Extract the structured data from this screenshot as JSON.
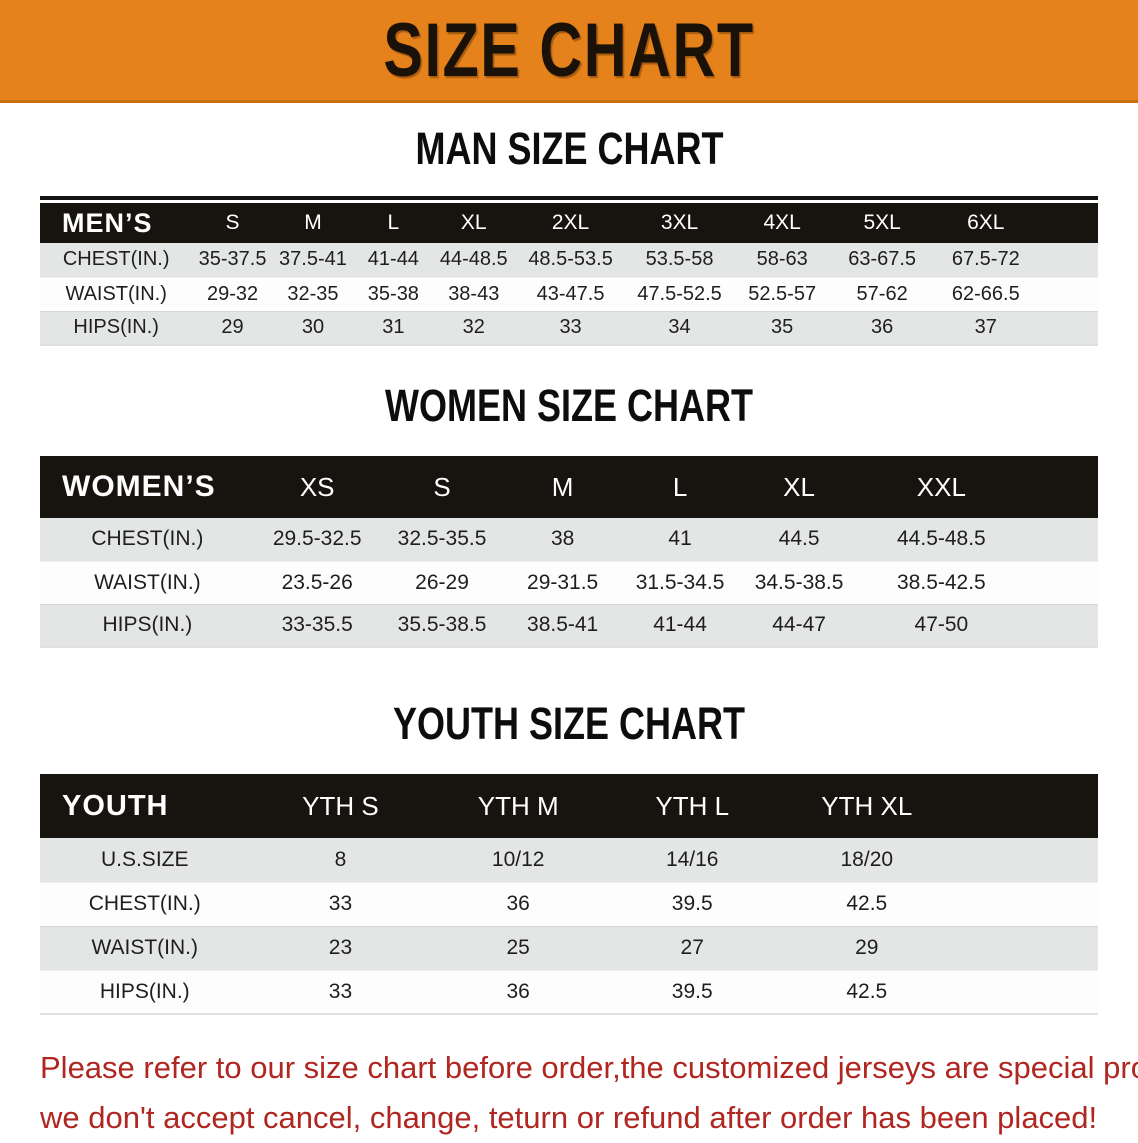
{
  "banner": {
    "title": "SIZE CHART",
    "bg_color": "#E5821B"
  },
  "chart_data": [
    {
      "type": "table",
      "title": "MAN SIZE CHART",
      "header_label": "MEN’S",
      "columns": [
        "S",
        "M",
        "L",
        "XL",
        "2XL",
        "3XL",
        "4XL",
        "5XL",
        "6XL"
      ],
      "rows": [
        {
          "label": "CHEST(IN.)",
          "values": [
            "35-37.5",
            "37.5-41",
            "41-44",
            "44-48.5",
            "48.5-53.5",
            "53.5-58",
            "58-63",
            "63-67.5",
            "67.5-72"
          ]
        },
        {
          "label": "WAIST(IN.)",
          "values": [
            "29-32",
            "32-35",
            "35-38",
            "38-43",
            "43-47.5",
            "47.5-52.5",
            "52.5-57",
            "57-62",
            "62-66.5"
          ]
        },
        {
          "label": "HIPS(IN.)",
          "values": [
            "29",
            "30",
            "31",
            "32",
            "33",
            "34",
            "35",
            "36",
            "37"
          ]
        }
      ]
    },
    {
      "type": "table",
      "title": "WOMEN SIZE CHART",
      "header_label": "WOMEN’S",
      "columns": [
        "XS",
        "S",
        "M",
        "L",
        "XL",
        "XXL"
      ],
      "rows": [
        {
          "label": "CHEST(IN.)",
          "values": [
            "29.5-32.5",
            "32.5-35.5",
            "38",
            "41",
            "44.5",
            "44.5-48.5"
          ]
        },
        {
          "label": "WAIST(IN.)",
          "values": [
            "23.5-26",
            "26-29",
            "29-31.5",
            "31.5-34.5",
            "34.5-38.5",
            "38.5-42.5"
          ]
        },
        {
          "label": "HIPS(IN.)",
          "values": [
            "33-35.5",
            "35.5-38.5",
            "38.5-41",
            "41-44",
            "44-47",
            "47-50"
          ]
        }
      ]
    },
    {
      "type": "table",
      "title": "YOUTH SIZE CHART",
      "header_label": "YOUTH",
      "columns": [
        "YTH S",
        "YTH M",
        "YTH L",
        "YTH XL"
      ],
      "rows": [
        {
          "label": "U.S.SIZE",
          "values": [
            "8",
            "10/12",
            "14/16",
            "18/20"
          ]
        },
        {
          "label": "CHEST(IN.)",
          "values": [
            "33",
            "36",
            "39.5",
            "42.5"
          ]
        },
        {
          "label": "WAIST(IN.)",
          "values": [
            "23",
            "25",
            "27",
            "29"
          ]
        },
        {
          "label": "HIPS(IN.)",
          "values": [
            "33",
            "36",
            "39.5",
            "42.5"
          ]
        }
      ]
    }
  ],
  "footer": {
    "lines": [
      "Please refer to our size chart before order,the customized jerseys are special products,",
      "we don't accept cancel, change, teturn or refund after order has been placed!"
    ],
    "color": "#B02620"
  },
  "colors": {
    "banner_orange": "#E5821B",
    "header_bar_black": "#17130F",
    "row_shade_gray": "#E4E6E6",
    "notice_red": "#B02620"
  }
}
